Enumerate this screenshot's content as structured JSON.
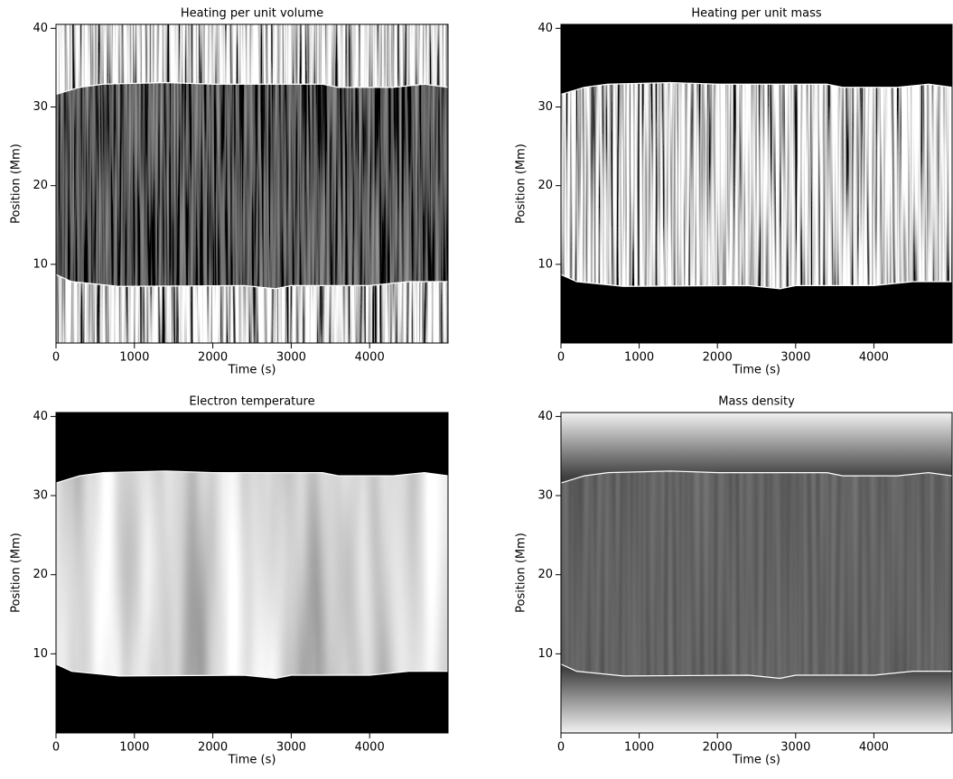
{
  "chart_data": [
    {
      "type": "heatmap",
      "title": "Heating per unit volume",
      "xlabel": "Time (s)",
      "ylabel": "Position (Mm)",
      "xlim": [
        0,
        5000
      ],
      "ylim": [
        0,
        40.5
      ],
      "xticks": [
        0,
        1000,
        2000,
        3000,
        4000
      ],
      "yticks": [
        10,
        20,
        30,
        40
      ],
      "boundaries": [
        {
          "color": "#ffffff",
          "x": [
            0,
            300,
            600,
            1400,
            2000,
            3400,
            3600,
            4300,
            4700,
            5000
          ],
          "values": [
            31.6,
            32.5,
            32.9,
            33.1,
            32.9,
            32.9,
            32.5,
            32.5,
            32.9,
            32.5
          ]
        },
        {
          "color": "#ffffff",
          "x": [
            0,
            200,
            800,
            2400,
            2800,
            3000,
            4000,
            4500,
            5000
          ],
          "values": [
            8.7,
            7.8,
            7.2,
            7.3,
            6.9,
            7.3,
            7.3,
            7.8,
            7.8
          ]
        }
      ]
    },
    {
      "type": "heatmap",
      "title": "Heating per unit mass",
      "xlabel": "Time (s)",
      "ylabel": "Position (Mm)",
      "xlim": [
        0,
        5000
      ],
      "ylim": [
        0,
        40.5
      ],
      "xticks": [
        0,
        1000,
        2000,
        3000,
        4000
      ],
      "yticks": [
        10,
        20,
        30,
        40
      ],
      "boundaries": [
        {
          "color": "#ffffff",
          "x": [
            0,
            300,
            600,
            1400,
            2000,
            3400,
            3600,
            4300,
            4700,
            5000
          ],
          "values": [
            31.6,
            32.5,
            32.9,
            33.1,
            32.9,
            32.9,
            32.5,
            32.5,
            32.9,
            32.5
          ]
        },
        {
          "color": "#ffffff",
          "x": [
            0,
            200,
            800,
            2400,
            2800,
            3000,
            4000,
            4500,
            5000
          ],
          "values": [
            8.7,
            7.8,
            7.2,
            7.3,
            6.9,
            7.3,
            7.3,
            7.8,
            7.8
          ]
        }
      ]
    },
    {
      "type": "heatmap",
      "title": "Electron temperature",
      "xlabel": "Time (s)",
      "ylabel": "Position (Mm)",
      "xlim": [
        0,
        5000
      ],
      "ylim": [
        0,
        40.5
      ],
      "xticks": [
        0,
        1000,
        2000,
        3000,
        4000
      ],
      "yticks": [
        10,
        20,
        30,
        40
      ],
      "boundaries": [
        {
          "color": "#ffffff",
          "x": [
            0,
            300,
            600,
            1400,
            2000,
            3400,
            3600,
            4300,
            4700,
            5000
          ],
          "values": [
            31.6,
            32.5,
            32.9,
            33.1,
            32.9,
            32.9,
            32.5,
            32.5,
            32.9,
            32.5
          ]
        },
        {
          "color": "#ffffff",
          "x": [
            0,
            200,
            800,
            2400,
            2800,
            3000,
            4000,
            4500,
            5000
          ],
          "values": [
            8.7,
            7.8,
            7.2,
            7.3,
            6.9,
            7.3,
            7.3,
            7.8,
            7.8
          ]
        }
      ]
    },
    {
      "type": "heatmap",
      "title": "Mass density",
      "xlabel": "Time (s)",
      "ylabel": "Position (Mm)",
      "xlim": [
        0,
        5000
      ],
      "ylim": [
        0,
        40.5
      ],
      "xticks": [
        0,
        1000,
        2000,
        3000,
        4000
      ],
      "yticks": [
        10,
        20,
        30,
        40
      ],
      "boundaries": [
        {
          "color": "#ffffff",
          "x": [
            0,
            300,
            600,
            1400,
            2000,
            3400,
            3600,
            4300,
            4700,
            5000
          ],
          "values": [
            31.6,
            32.5,
            32.9,
            33.1,
            32.9,
            32.9,
            32.5,
            32.5,
            32.9,
            32.5
          ]
        },
        {
          "color": "#ffffff",
          "x": [
            0,
            200,
            800,
            2400,
            2800,
            3000,
            4000,
            4500,
            5000
          ],
          "values": [
            8.7,
            7.8,
            7.2,
            7.3,
            6.9,
            7.3,
            7.3,
            7.8,
            7.8
          ]
        }
      ]
    }
  ]
}
